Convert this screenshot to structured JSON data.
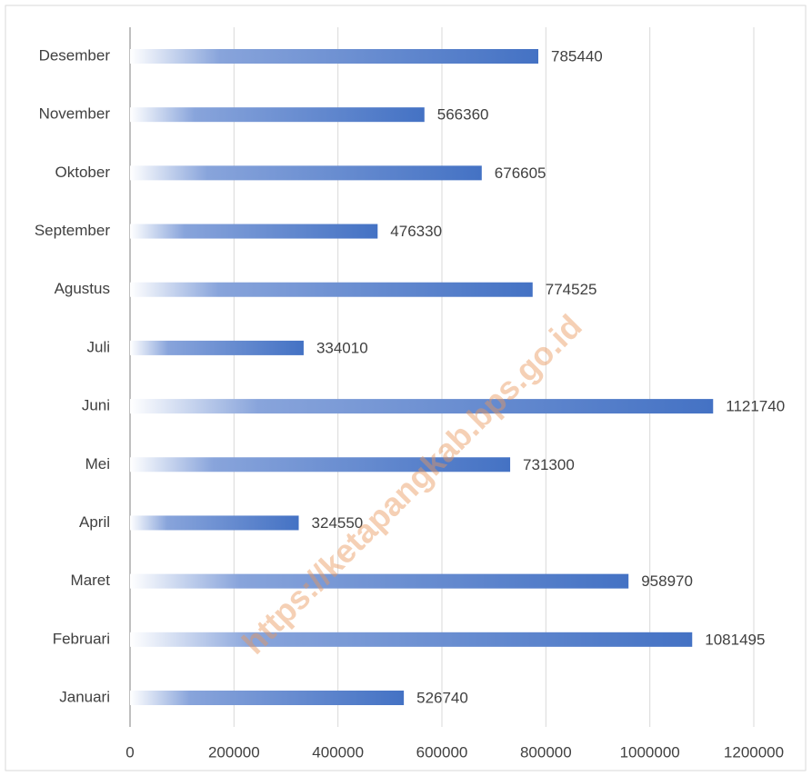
{
  "chart_data": {
    "type": "bar",
    "orientation": "horizontal",
    "categories": [
      "Januari",
      "Februari",
      "Maret",
      "April",
      "Mei",
      "Juni",
      "Juli",
      "Agustus",
      "September",
      "Oktober",
      "November",
      "Desember"
    ],
    "values": [
      526740,
      1081495,
      958970,
      324550,
      731300,
      1121740,
      334010,
      774525,
      476330,
      676605,
      566360,
      785440
    ],
    "color": "#4472c4",
    "xlim": [
      0,
      1200000
    ],
    "xticks": [
      0,
      200000,
      400000,
      600000,
      800000,
      1000000,
      1200000
    ],
    "grid": true,
    "watermark": "https://ketapangkab.bps.go.id"
  }
}
